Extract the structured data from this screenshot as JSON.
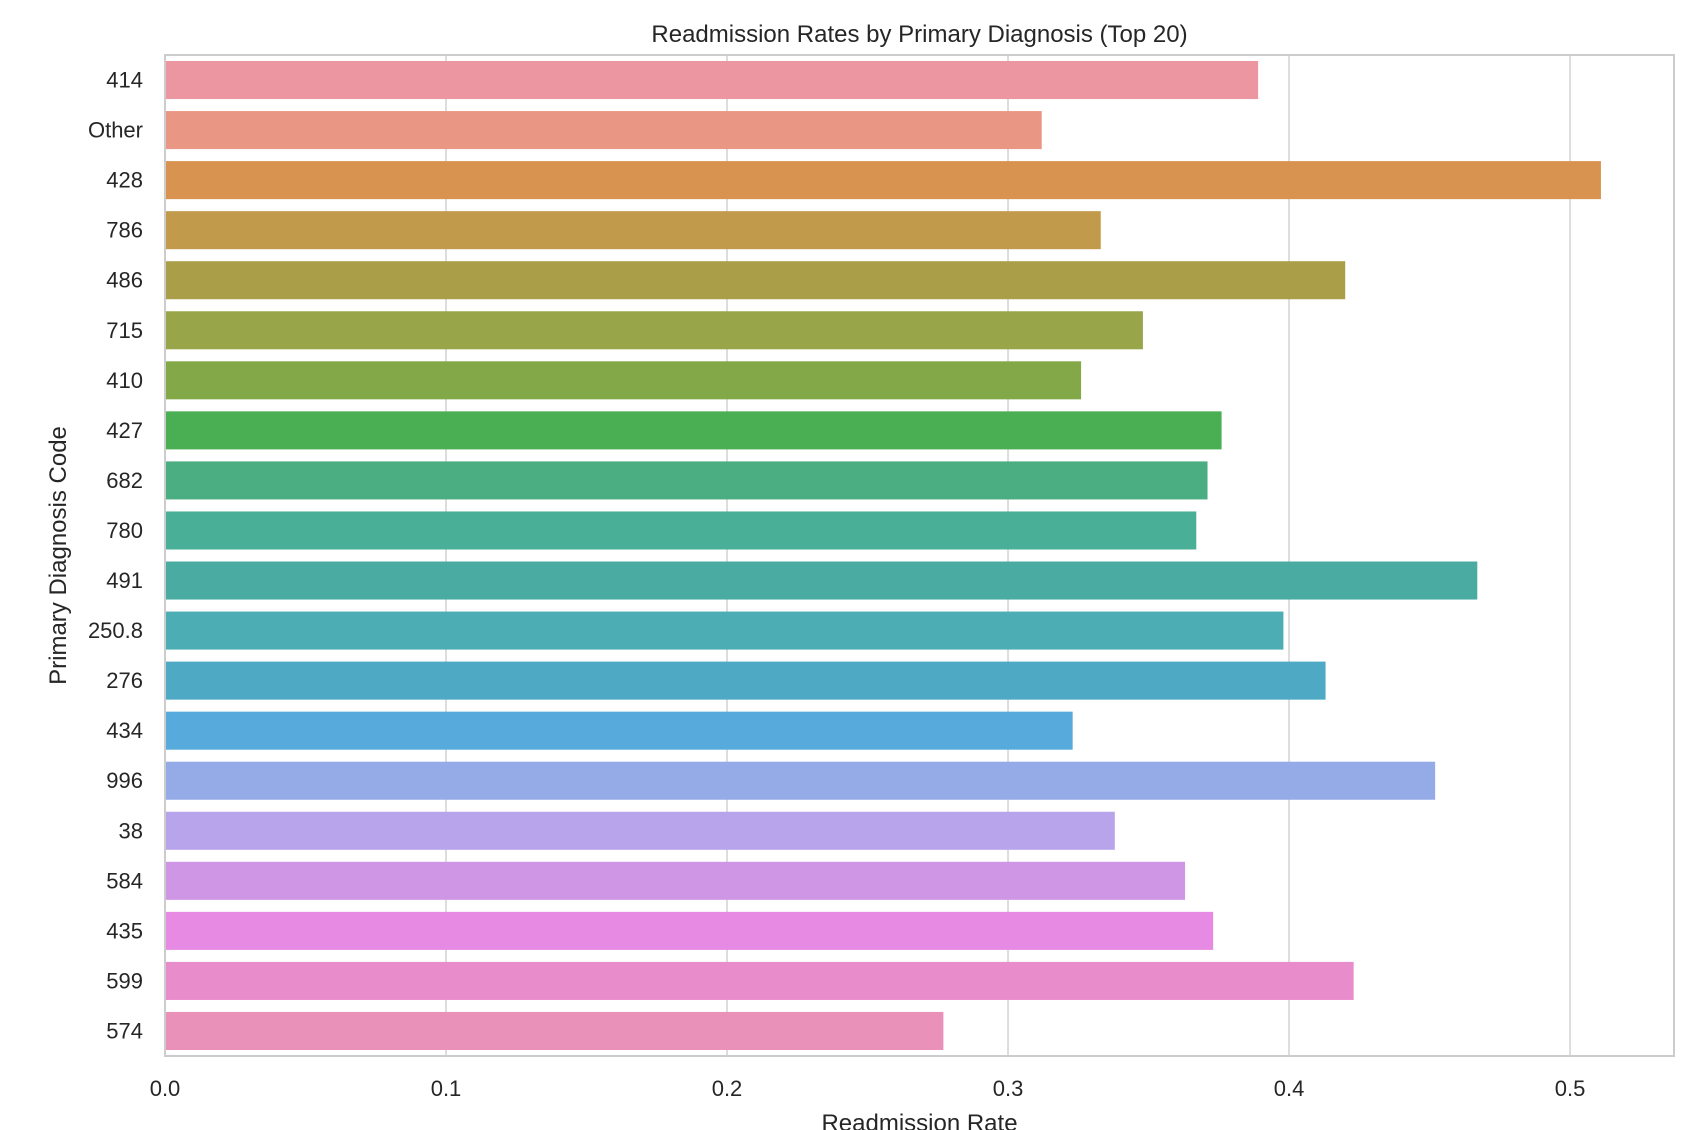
{
  "chart_data": {
    "type": "bar",
    "orientation": "horizontal",
    "title": "Readmission Rates by Primary Diagnosis (Top 20)",
    "xlabel": "Readmission Rate",
    "ylabel": "Primary Diagnosis Code",
    "categories": [
      "414",
      "Other",
      "428",
      "786",
      "486",
      "715",
      "410",
      "427",
      "682",
      "780",
      "491",
      "250.8",
      "276",
      "434",
      "996",
      "38",
      "584",
      "435",
      "599",
      "574"
    ],
    "values": [
      0.389,
      0.312,
      0.511,
      0.333,
      0.42,
      0.348,
      0.326,
      0.376,
      0.371,
      0.367,
      0.467,
      0.398,
      0.413,
      0.323,
      0.452,
      0.338,
      0.363,
      0.373,
      0.423,
      0.277
    ],
    "colors": [
      "#ec96a1",
      "#ea9684",
      "#d99350",
      "#c29a4c",
      "#aa9f48",
      "#98a548",
      "#82a848",
      "#4aae52",
      "#4aae82",
      "#4aaf97",
      "#4aaba3",
      "#4caeb4",
      "#4eaac4",
      "#56abdc",
      "#94abe8",
      "#b7a4eb",
      "#d096e6",
      "#e78ae3",
      "#e98ccc",
      "#e991b9"
    ],
    "xlim": [
      0,
      0.537
    ],
    "xticks": [
      0.0,
      0.1,
      0.2,
      0.3,
      0.4,
      0.5
    ],
    "xtick_labels": [
      "0.0",
      "0.1",
      "0.2",
      "0.3",
      "0.4",
      "0.5"
    ],
    "grid": true,
    "legend": "none"
  }
}
